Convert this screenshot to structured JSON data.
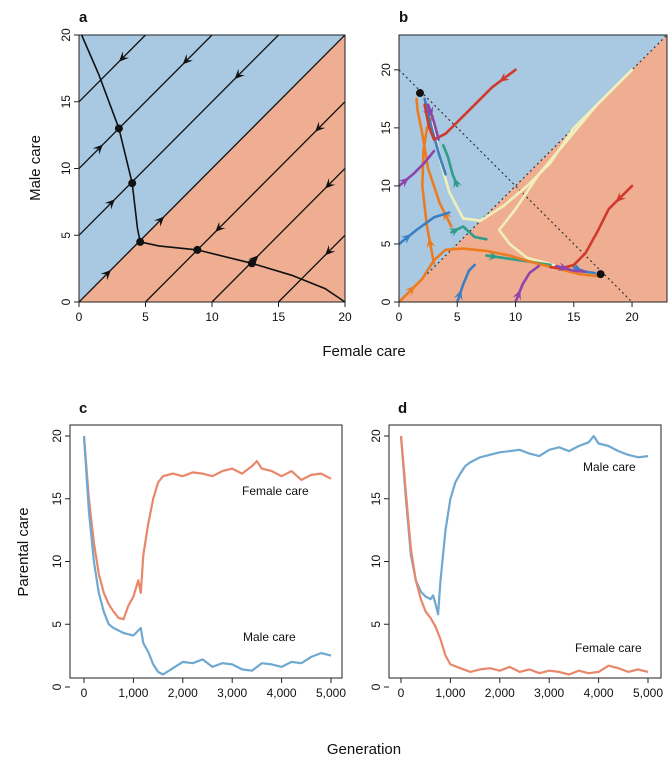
{
  "figure": {
    "shared_labels": {
      "top_xlabel": "Female care",
      "top_ylabel": "Male care",
      "bottom_xlabel": "Generation",
      "bottom_ylabel": "Parental care"
    }
  },
  "chart_data": [
    {
      "panel": "a",
      "type": "line",
      "xlabel": "Female care",
      "ylabel": "Male care",
      "xlim": [
        0,
        20
      ],
      "ylim": [
        0,
        20
      ],
      "xticks": [
        "0",
        "5",
        "10",
        "15",
        "20"
      ],
      "yticks": [
        "0",
        "5",
        "10",
        "15",
        "20"
      ],
      "regions": [
        {
          "name": "male-care region",
          "color": "#a9c9e2"
        },
        {
          "name": "female-care region",
          "color": "#efae92"
        }
      ],
      "equilibria": [
        [
          3,
          13
        ],
        [
          4,
          8.9
        ],
        [
          4.6,
          4.5
        ],
        [
          8.9,
          3.9
        ],
        [
          13,
          2.9
        ]
      ],
      "separatrix": [
        [
          0.2,
          20
        ],
        [
          1.5,
          17
        ],
        [
          3,
          13
        ],
        [
          4,
          8.9
        ],
        [
          4.4,
          5.5
        ],
        [
          4.6,
          4.5
        ],
        [
          6,
          4.2
        ],
        [
          8.9,
          3.9
        ],
        [
          13,
          2.9
        ],
        [
          16,
          2
        ],
        [
          18.5,
          1
        ],
        [
          20,
          0
        ]
      ],
      "flow_lines": [
        {
          "from": [
            0,
            0
          ],
          "to": [
            20,
            20
          ]
        },
        {
          "from": [
            0,
            5
          ],
          "to": [
            15,
            20
          ]
        },
        {
          "from": [
            0,
            10
          ],
          "to": [
            10,
            20
          ]
        },
        {
          "from": [
            0,
            15
          ],
          "to": [
            5,
            20
          ]
        },
        {
          "from": [
            5,
            0
          ],
          "to": [
            20,
            15
          ]
        },
        {
          "from": [
            10,
            0
          ],
          "to": [
            20,
            10
          ]
        },
        {
          "from": [
            15,
            0
          ],
          "to": [
            20,
            5
          ]
        }
      ]
    },
    {
      "panel": "b",
      "type": "line",
      "xlabel": "Female care",
      "ylabel": "Male care",
      "xlim": [
        0,
        23
      ],
      "ylim": [
        0,
        23
      ],
      "xticks": [
        "0",
        "5",
        "10",
        "15",
        "20"
      ],
      "yticks": [
        "0",
        "5",
        "10",
        "15",
        "20"
      ],
      "endpoints": [
        [
          1.8,
          18
        ],
        [
          17.3,
          2.4
        ]
      ],
      "trajectories": [
        {
          "color": "#f0efbb",
          "points": [
            [
              20,
              20
            ],
            [
              17,
              17
            ],
            [
              15,
              15
            ],
            [
              13,
              12
            ],
            [
              11,
              10
            ],
            [
              9,
              8.3
            ],
            [
              7,
              7
            ],
            [
              5.5,
              7.2
            ],
            [
              4.3,
              9.5
            ],
            [
              3.6,
              12
            ],
            [
              3.2,
              14
            ],
            [
              2.6,
              16
            ],
            [
              2.2,
              17
            ]
          ]
        },
        {
          "color": "#f0efbb",
          "points": [
            [
              20,
              20
            ],
            [
              17,
              17
            ],
            [
              14.5,
              14
            ],
            [
              12,
              11
            ],
            [
              10,
              8
            ],
            [
              8.6,
              6.2
            ],
            [
              9.5,
              5
            ],
            [
              11,
              3.8
            ],
            [
              12.5,
              3.4
            ],
            [
              14.5,
              2.8
            ],
            [
              16.5,
              2.4
            ]
          ]
        },
        {
          "color": "#2e9e8a",
          "points": [
            [
              5,
              10
            ],
            [
              4.6,
              11
            ],
            [
              4.2,
              12.5
            ],
            [
              3.8,
              13.5
            ]
          ]
        },
        {
          "color": "#2e9e8a",
          "points": [
            [
              7.5,
              4
            ],
            [
              9,
              3.8
            ],
            [
              11,
              3.5
            ],
            [
              13,
              3.2
            ]
          ]
        },
        {
          "color": "#2e9e8a",
          "points": [
            [
              4.5,
              6
            ],
            [
              5.5,
              6.5
            ],
            [
              6.5,
              5.6
            ],
            [
              7.5,
              5.4
            ]
          ]
        },
        {
          "color": "#ed7b20",
          "points": [
            [
              0,
              0
            ],
            [
              2,
              2
            ],
            [
              3,
              3.6
            ],
            [
              4,
              4.5
            ],
            [
              5.5,
              4.6
            ],
            [
              7.5,
              4.4
            ],
            [
              9.5,
              4
            ],
            [
              11.5,
              3.4
            ],
            [
              13.5,
              2.9
            ],
            [
              15.5,
              2.4
            ],
            [
              17.3,
              2.2
            ]
          ]
        },
        {
          "color": "#ed7b20",
          "points": [
            [
              4.5,
              6.5
            ],
            [
              3.5,
              8.5
            ],
            [
              2.5,
              11.5
            ],
            [
              2,
              14.5
            ],
            [
              1.6,
              16.5
            ],
            [
              1.5,
              17.5
            ]
          ]
        },
        {
          "color": "#ed7b20",
          "points": [
            [
              3,
              3.3
            ],
            [
              2.4,
              6.5
            ],
            [
              2,
              10
            ],
            [
              2.1,
              13
            ],
            [
              2.4,
              15
            ],
            [
              2.9,
              16
            ]
          ]
        },
        {
          "color": "#3a7fc1",
          "points": [
            [
              0,
              5
            ],
            [
              1.5,
              6.2
            ],
            [
              3,
              7.3
            ],
            [
              4.3,
              7.7
            ]
          ]
        },
        {
          "color": "#3a7fc1",
          "points": [
            [
              5,
              0
            ],
            [
              5.5,
              1.5
            ],
            [
              6,
              2.7
            ],
            [
              6.5,
              3.2
            ]
          ]
        },
        {
          "color": "#3a7fc1",
          "points": [
            [
              2.2,
              17.5
            ],
            [
              2.8,
              15
            ],
            [
              3.5,
              12.5
            ],
            [
              4,
              11
            ]
          ]
        },
        {
          "color": "#3a7fc1",
          "points": [
            [
              15,
              3
            ],
            [
              16,
              2.6
            ],
            [
              16.8,
              2.5
            ]
          ]
        },
        {
          "color": "#cf3a2c",
          "points": [
            [
              10,
              20
            ],
            [
              8,
              18.5
            ],
            [
              6.5,
              17
            ],
            [
              5,
              15.5
            ],
            [
              4,
              14.5
            ],
            [
              3,
              14
            ],
            [
              2.6,
              15
            ],
            [
              2.2,
              17
            ]
          ]
        },
        {
          "color": "#cf3a2c",
          "points": [
            [
              20,
              10
            ],
            [
              18,
              8
            ],
            [
              17,
              6
            ],
            [
              16,
              4.2
            ],
            [
              15,
              3.2
            ],
            [
              14,
              2.9
            ],
            [
              13,
              3
            ]
          ]
        },
        {
          "color": "#8e44ad",
          "points": [
            [
              0,
              10
            ],
            [
              1.2,
              11
            ],
            [
              2.2,
              12
            ],
            [
              3,
              13
            ]
          ]
        },
        {
          "color": "#8e44ad",
          "points": [
            [
              10,
              0
            ],
            [
              10.6,
              1.5
            ],
            [
              11.2,
              2.5
            ],
            [
              12,
              3.1
            ]
          ]
        },
        {
          "color": "#8e44ad",
          "points": [
            [
              2.5,
              17
            ],
            [
              3,
              15.5
            ],
            [
              3.4,
              14
            ]
          ]
        },
        {
          "color": "#8e44ad",
          "points": [
            [
              13.5,
              3.1
            ],
            [
              15,
              2.7
            ],
            [
              16,
              2.6
            ]
          ]
        }
      ]
    },
    {
      "panel": "c",
      "type": "line",
      "xlabel": "Generation",
      "ylabel": "Parental care",
      "xlim": [
        0,
        5000
      ],
      "ylim": [
        0,
        20
      ],
      "xticks": [
        "0",
        "1,000",
        "2,000",
        "3,000",
        "4,000",
        "5,000"
      ],
      "yticks": [
        "0",
        "5",
        "10",
        "15",
        "20"
      ],
      "series": [
        {
          "name": "Female care",
          "color": "#e8876a",
          "x": [
            0,
            100,
            200,
            300,
            400,
            500,
            600,
            700,
            800,
            900,
            1000,
            1100,
            1150,
            1200,
            1300,
            1400,
            1500,
            1600,
            1800,
            2000,
            2200,
            2400,
            2600,
            2800,
            3000,
            3200,
            3400,
            3500,
            3600,
            3800,
            4000,
            4200,
            4400,
            4600,
            4800,
            5000
          ],
          "y": [
            20,
            15,
            11.5,
            9,
            7.5,
            6.6,
            6,
            5.5,
            5.4,
            6.5,
            7.2,
            8.5,
            7.5,
            10.5,
            13,
            15,
            16.3,
            16.8,
            17,
            16.8,
            17.1,
            17,
            16.8,
            17.2,
            17.4,
            17,
            17.6,
            18,
            17.4,
            17.2,
            16.8,
            17.2,
            16.5,
            16.9,
            17,
            16.6
          ]
        },
        {
          "name": "Male care",
          "color": "#6fa8d0",
          "x": [
            0,
            100,
            200,
            300,
            400,
            500,
            600,
            700,
            800,
            900,
            1000,
            1100,
            1150,
            1200,
            1300,
            1400,
            1500,
            1600,
            1800,
            2000,
            2200,
            2400,
            2600,
            2800,
            3000,
            3200,
            3400,
            3600,
            3800,
            4000,
            4200,
            4400,
            4600,
            4800,
            5000
          ],
          "y": [
            20,
            14,
            10,
            7.5,
            6,
            5,
            4.7,
            4.5,
            4.3,
            4.2,
            4.1,
            4.5,
            4.7,
            3.5,
            2.8,
            1.8,
            1.2,
            1,
            1.5,
            2,
            1.9,
            2.2,
            1.6,
            1.9,
            1.8,
            1.4,
            1.3,
            1.9,
            1.8,
            1.6,
            2,
            1.9,
            2.4,
            2.7,
            2.5
          ]
        }
      ]
    },
    {
      "panel": "d",
      "type": "line",
      "xlabel": "Generation",
      "ylabel": "Parental care",
      "xlim": [
        0,
        5000
      ],
      "ylim": [
        0,
        20
      ],
      "xticks": [
        "0",
        "1,000",
        "2,000",
        "3,000",
        "4,000",
        "5,000"
      ],
      "yticks": [
        "0",
        "5",
        "10",
        "15",
        "20"
      ],
      "series": [
        {
          "name": "Male care",
          "color": "#6fa8d0",
          "x": [
            0,
            100,
            200,
            300,
            400,
            500,
            600,
            650,
            700,
            750,
            800,
            900,
            1000,
            1100,
            1200,
            1300,
            1400,
            1600,
            1800,
            2000,
            2200,
            2400,
            2600,
            2800,
            3000,
            3200,
            3400,
            3600,
            3800,
            3900,
            4000,
            4200,
            4400,
            4600,
            4800,
            5000
          ],
          "y": [
            20,
            15,
            10.5,
            8.5,
            7.6,
            7.2,
            7,
            7.3,
            6.6,
            5.8,
            8.5,
            12.5,
            15,
            16.3,
            17,
            17.6,
            17.9,
            18.3,
            18.5,
            18.7,
            18.8,
            18.9,
            18.6,
            18.4,
            18.9,
            19.1,
            18.8,
            19.2,
            19.5,
            20,
            19.4,
            19.2,
            18.8,
            18.5,
            18.3,
            18.4
          ]
        },
        {
          "name": "Female care",
          "color": "#e8876a",
          "x": [
            0,
            100,
            200,
            300,
            400,
            500,
            600,
            700,
            800,
            900,
            1000,
            1200,
            1400,
            1600,
            1800,
            2000,
            2200,
            2400,
            2600,
            2800,
            3000,
            3200,
            3400,
            3600,
            3800,
            4000,
            4200,
            4400,
            4600,
            4800,
            5000
          ],
          "y": [
            20,
            15.5,
            11,
            8.5,
            7,
            6,
            5.5,
            4.8,
            3.8,
            2.5,
            1.8,
            1.5,
            1.2,
            1.4,
            1.5,
            1.3,
            1.6,
            1.2,
            1.4,
            1.1,
            1.3,
            1.2,
            1,
            1.3,
            1.1,
            1.2,
            1.7,
            1.5,
            1.2,
            1.4,
            1.2
          ]
        }
      ]
    }
  ]
}
